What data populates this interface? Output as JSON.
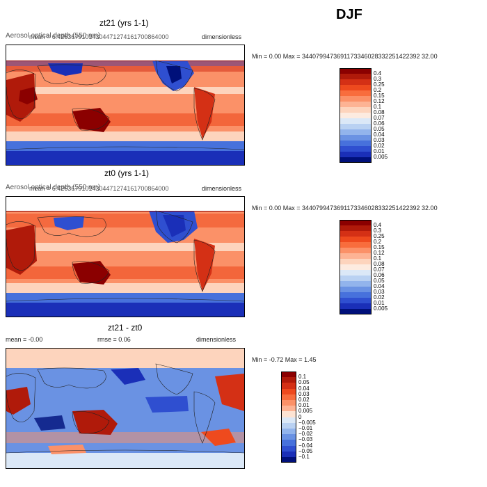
{
  "season": "DJF",
  "panels": [
    {
      "title": "zt21 (yrs 1-1)",
      "variable": "Aerosol optical depth (550 nm)",
      "mean_text": "mean = 6.42636791014304471274161700864000",
      "units": "dimensionless",
      "min_max": "Min =     0.00 Max = 3440799473691173346028332251422392 32.00",
      "scale": "abs"
    },
    {
      "title": "zt0 (yrs 1-1)",
      "variable": "Aerosol optical depth (550 nm)",
      "mean_text": "mean = 6.42636791014304471274161700864000",
      "units": "dimensionless",
      "min_max": "Min =     0.00 Max = 3440799473691173346028332251422392 32.00",
      "scale": "abs"
    },
    {
      "title": "zt21 - zt0",
      "mean_text": "mean =    -0.00",
      "rmse_text": "rmse =     0.06",
      "units": "dimensionless",
      "min_max": "Min =   -0.72 Max =    1.45",
      "scale": "diff"
    }
  ],
  "colorbars": {
    "abs": {
      "labels": [
        "0.4",
        "0.3",
        "0.25",
        "0.2",
        "0.15",
        "0.12",
        "0.1",
        "0.08",
        "0.07",
        "0.06",
        "0.05",
        "0.04",
        "0.03",
        "0.02",
        "0.01",
        "0.005"
      ],
      "colors": [
        "#8b0000",
        "#b01a0a",
        "#d43015",
        "#ee4a1e",
        "#f86d3d",
        "#fb9168",
        "#fdb394",
        "#fdd4bd",
        "#fdebe0",
        "#dbe8f7",
        "#b9d1f2",
        "#92b4ec",
        "#6a92e3",
        "#4771dc",
        "#2f4fd0",
        "#1a2fb8",
        "#00107a"
      ]
    },
    "diff": {
      "labels": [
        "0.1",
        "0.05",
        "0.04",
        "0.03",
        "0.02",
        "0.01",
        "0.005",
        "0",
        "−0.005",
        "−0.01",
        "−0.02",
        "−0.03",
        "−0.04",
        "−0.05",
        "−0.1"
      ],
      "colors": [
        "#8b0000",
        "#b01a0a",
        "#d43015",
        "#ee4a1e",
        "#f86d3d",
        "#fb9168",
        "#fdb394",
        "#fde3d3",
        "#dbe8f7",
        "#b9d1f2",
        "#92b4ec",
        "#6a92e3",
        "#4771dc",
        "#2f4fd0",
        "#1a2fb8",
        "#00107a"
      ]
    }
  }
}
